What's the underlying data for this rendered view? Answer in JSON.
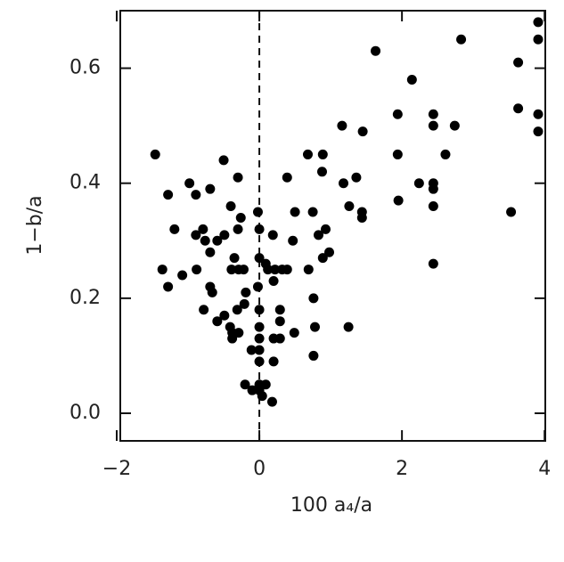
{
  "chart_data": {
    "type": "scatter",
    "x_label": "100 a₄/a",
    "y_label": "1−b/a",
    "xlim": [
      -1.95,
      4.01
    ],
    "ylim": [
      -0.048,
      0.7
    ],
    "xticks": [
      {
        "value": -2,
        "label": "−2"
      },
      0,
      2,
      4
    ],
    "yticks": [
      {
        "value": 0,
        "label": "0.0"
      },
      0.2,
      0.4,
      0.6
    ],
    "reference_x": 0,
    "color": "#000000",
    "x": [
      -1.46,
      -1.28,
      -1.36,
      -1.28,
      -1.19,
      -1.08,
      -0.98,
      -0.89,
      -0.89,
      -0.88,
      -0.79,
      -0.78,
      -0.76,
      -0.69,
      -0.69,
      -0.69,
      -0.66,
      -0.59,
      -0.59,
      -0.5,
      -0.49,
      -0.49,
      -0.41,
      -0.4,
      -0.39,
      -0.38,
      -0.38,
      -0.35,
      -0.31,
      -0.3,
      -0.3,
      -0.29,
      -0.29,
      -0.26,
      -0.22,
      -0.2,
      -0.21,
      -0.19,
      -0.11,
      -0.1,
      -0.02,
      -0.02,
      0,
      0,
      0,
      0,
      0,
      0,
      0,
      0,
      0,
      0.04,
      0.09,
      0.09,
      0.12,
      0.19,
      0.2,
      0.2,
      0.18,
      0.2,
      0.22,
      0.29,
      0.29,
      0.29,
      0.32,
      0.39,
      0.39,
      0.47,
      0.5,
      0.49,
      0.68,
      0.69,
      0.75,
      0.76,
      0.78,
      0.76,
      0.83,
      0.88,
      0.89,
      0.89,
      0.93,
      0.98,
      1.16,
      1.18,
      1.25,
      1.26,
      1.36,
      1.44,
      1.44,
      1.45,
      1.63,
      1.94,
      1.94,
      1.95,
      2.14,
      2.24,
      2.44,
      2.44,
      2.44,
      2.44,
      2.44,
      2.44,
      2.61,
      2.74,
      2.83,
      3.53,
      3.63,
      3.63,
      3.91,
      3.91,
      3.91,
      3.91
    ],
    "values": [
      0.45,
      0.38,
      0.25,
      0.22,
      0.32,
      0.24,
      0.4,
      0.38,
      0.31,
      0.25,
      0.32,
      0.18,
      0.3,
      0.39,
      0.28,
      0.22,
      0.21,
      0.3,
      0.16,
      0.44,
      0.31,
      0.17,
      0.15,
      0.36,
      0.25,
      0.14,
      0.13,
      0.27,
      0.18,
      0.41,
      0.32,
      0.25,
      0.14,
      0.34,
      0.25,
      0.05,
      0.19,
      0.21,
      0.11,
      0.04,
      0.22,
      0.35,
      0.32,
      0.27,
      0.18,
      0.15,
      0.13,
      0.11,
      0.09,
      0.05,
      0.04,
      0.03,
      0.05,
      0.26,
      0.25,
      0.31,
      0.23,
      0.09,
      0.02,
      0.13,
      0.25,
      0.18,
      0.16,
      0.13,
      0.25,
      0.25,
      0.41,
      0.3,
      0.35,
      0.14,
      0.45,
      0.25,
      0.35,
      0.2,
      0.15,
      0.1,
      0.31,
      0.42,
      0.27,
      0.45,
      0.32,
      0.28,
      0.5,
      0.4,
      0.15,
      0.36,
      0.41,
      0.35,
      0.34,
      0.49,
      0.63,
      0.52,
      0.45,
      0.37,
      0.58,
      0.4,
      0.52,
      0.5,
      0.4,
      0.39,
      0.36,
      0.26,
      0.45,
      0.5,
      0.65,
      0.35,
      0.61,
      0.53,
      0.68,
      0.65,
      0.52,
      0.49
    ]
  }
}
